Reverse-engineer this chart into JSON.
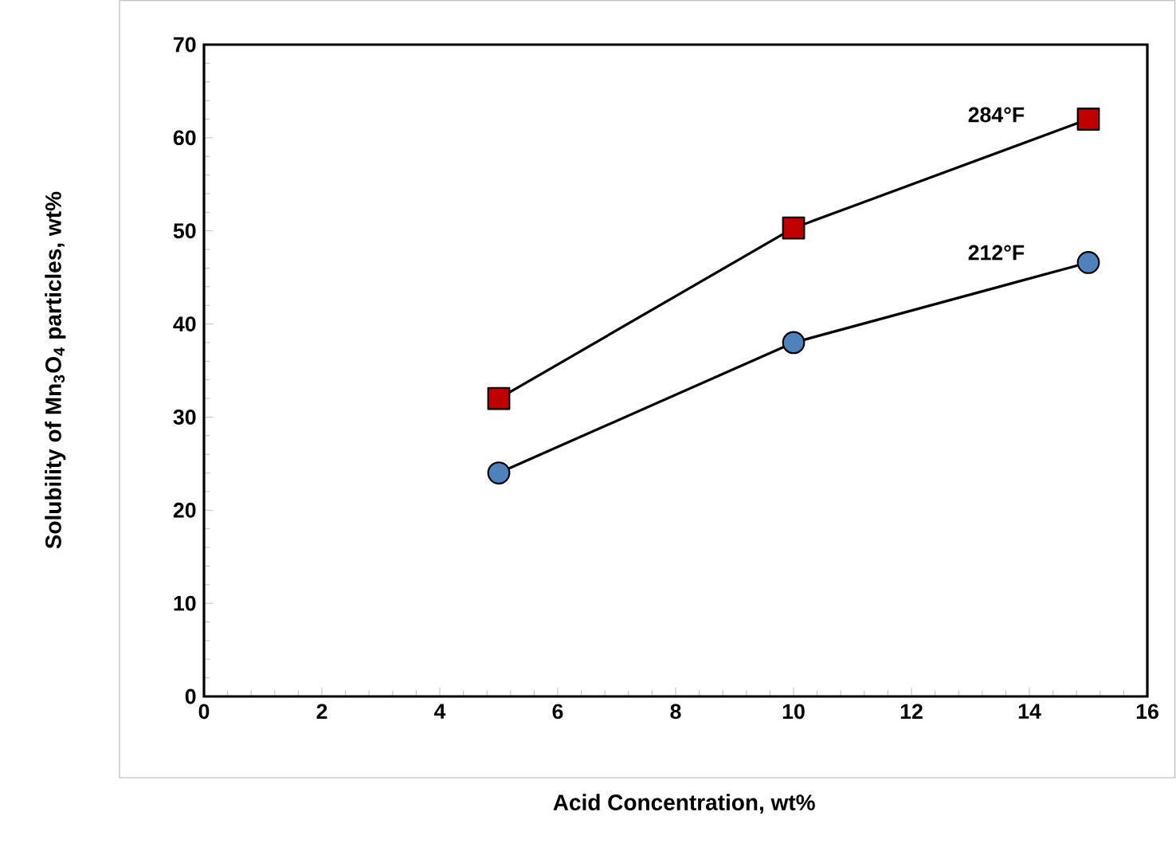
{
  "chart_data": {
    "type": "line",
    "xlabel": "Acid Concentration, wt%",
    "ylabel": "Solubility of Mn$_{3}$O$_{4}$ particles, wt%",
    "x": [
      5,
      10,
      15
    ],
    "xlim": [
      0,
      16
    ],
    "xticks": [
      0,
      2,
      4,
      6,
      8,
      10,
      12,
      14,
      16
    ],
    "ylim": [
      0,
      70
    ],
    "yticks": [
      0,
      10,
      20,
      30,
      40,
      50,
      60,
      70
    ],
    "grid": false,
    "series": [
      {
        "name": "284°F",
        "color": "#c00000",
        "marker": "square",
        "values": [
          32,
          50.3,
          62
        ]
      },
      {
        "name": "212°F",
        "color": "#4f81bd",
        "marker": "circle",
        "values": [
          24,
          38,
          46.6
        ]
      }
    ]
  }
}
